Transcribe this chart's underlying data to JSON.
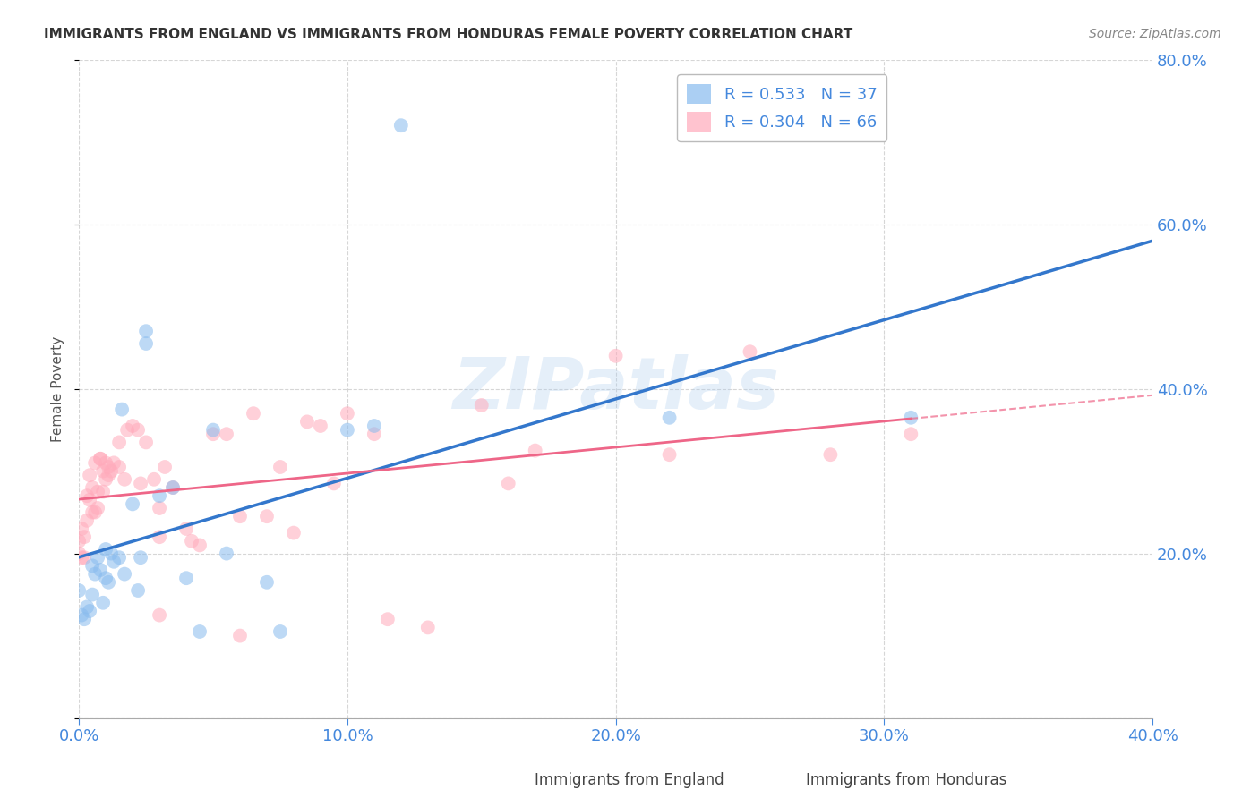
{
  "title": "IMMIGRANTS FROM ENGLAND VS IMMIGRANTS FROM HONDURAS FEMALE POVERTY CORRELATION CHART",
  "source": "Source: ZipAtlas.com",
  "ylabel_label": "Female Poverty",
  "xlim": [
    0.0,
    0.4
  ],
  "ylim": [
    0.0,
    0.8
  ],
  "xticks": [
    0.0,
    0.1,
    0.2,
    0.3,
    0.4
  ],
  "yticks": [
    0.2,
    0.4,
    0.6,
    0.8
  ],
  "england_R": 0.533,
  "england_N": 37,
  "honduras_R": 0.304,
  "honduras_N": 66,
  "england_color": "#88bbee",
  "honduras_color": "#ffaabb",
  "england_line_color": "#3377cc",
  "honduras_line_color": "#ee6688",
  "england_scatter": [
    [
      0.0,
      0.155
    ],
    [
      0.001,
      0.125
    ],
    [
      0.002,
      0.12
    ],
    [
      0.003,
      0.135
    ],
    [
      0.004,
      0.13
    ],
    [
      0.005,
      0.15
    ],
    [
      0.005,
      0.185
    ],
    [
      0.006,
      0.175
    ],
    [
      0.007,
      0.195
    ],
    [
      0.008,
      0.18
    ],
    [
      0.009,
      0.14
    ],
    [
      0.01,
      0.17
    ],
    [
      0.01,
      0.205
    ],
    [
      0.011,
      0.165
    ],
    [
      0.012,
      0.2
    ],
    [
      0.013,
      0.19
    ],
    [
      0.015,
      0.195
    ],
    [
      0.016,
      0.375
    ],
    [
      0.017,
      0.175
    ],
    [
      0.02,
      0.26
    ],
    [
      0.022,
      0.155
    ],
    [
      0.023,
      0.195
    ],
    [
      0.025,
      0.455
    ],
    [
      0.025,
      0.47
    ],
    [
      0.03,
      0.27
    ],
    [
      0.035,
      0.28
    ],
    [
      0.04,
      0.17
    ],
    [
      0.045,
      0.105
    ],
    [
      0.05,
      0.35
    ],
    [
      0.055,
      0.2
    ],
    [
      0.07,
      0.165
    ],
    [
      0.075,
      0.105
    ],
    [
      0.1,
      0.35
    ],
    [
      0.11,
      0.355
    ],
    [
      0.12,
      0.72
    ],
    [
      0.22,
      0.365
    ],
    [
      0.31,
      0.365
    ]
  ],
  "honduras_scatter": [
    [
      0.0,
      0.2
    ],
    [
      0.0,
      0.215
    ],
    [
      0.001,
      0.195
    ],
    [
      0.001,
      0.23
    ],
    [
      0.002,
      0.195
    ],
    [
      0.002,
      0.22
    ],
    [
      0.003,
      0.24
    ],
    [
      0.003,
      0.27
    ],
    [
      0.004,
      0.265
    ],
    [
      0.004,
      0.295
    ],
    [
      0.005,
      0.25
    ],
    [
      0.005,
      0.28
    ],
    [
      0.006,
      0.25
    ],
    [
      0.006,
      0.31
    ],
    [
      0.007,
      0.255
    ],
    [
      0.007,
      0.275
    ],
    [
      0.008,
      0.315
    ],
    [
      0.008,
      0.315
    ],
    [
      0.009,
      0.275
    ],
    [
      0.009,
      0.3
    ],
    [
      0.01,
      0.29
    ],
    [
      0.01,
      0.31
    ],
    [
      0.011,
      0.295
    ],
    [
      0.011,
      0.305
    ],
    [
      0.012,
      0.3
    ],
    [
      0.013,
      0.31
    ],
    [
      0.015,
      0.305
    ],
    [
      0.015,
      0.335
    ],
    [
      0.017,
      0.29
    ],
    [
      0.018,
      0.35
    ],
    [
      0.02,
      0.355
    ],
    [
      0.022,
      0.35
    ],
    [
      0.023,
      0.285
    ],
    [
      0.025,
      0.335
    ],
    [
      0.028,
      0.29
    ],
    [
      0.03,
      0.22
    ],
    [
      0.03,
      0.255
    ],
    [
      0.03,
      0.125
    ],
    [
      0.032,
      0.305
    ],
    [
      0.035,
      0.28
    ],
    [
      0.04,
      0.23
    ],
    [
      0.042,
      0.215
    ],
    [
      0.045,
      0.21
    ],
    [
      0.05,
      0.345
    ],
    [
      0.055,
      0.345
    ],
    [
      0.06,
      0.245
    ],
    [
      0.06,
      0.1
    ],
    [
      0.065,
      0.37
    ],
    [
      0.07,
      0.245
    ],
    [
      0.075,
      0.305
    ],
    [
      0.08,
      0.225
    ],
    [
      0.085,
      0.36
    ],
    [
      0.09,
      0.355
    ],
    [
      0.095,
      0.285
    ],
    [
      0.1,
      0.37
    ],
    [
      0.11,
      0.345
    ],
    [
      0.115,
      0.12
    ],
    [
      0.13,
      0.11
    ],
    [
      0.15,
      0.38
    ],
    [
      0.16,
      0.285
    ],
    [
      0.17,
      0.325
    ],
    [
      0.2,
      0.44
    ],
    [
      0.22,
      0.32
    ],
    [
      0.25,
      0.445
    ],
    [
      0.28,
      0.32
    ],
    [
      0.31,
      0.345
    ]
  ],
  "watermark": "ZIPatlas",
  "background_color": "#ffffff",
  "grid_color": "#cccccc",
  "tick_label_color": "#4488dd",
  "title_color": "#333333",
  "source_color": "#888888"
}
